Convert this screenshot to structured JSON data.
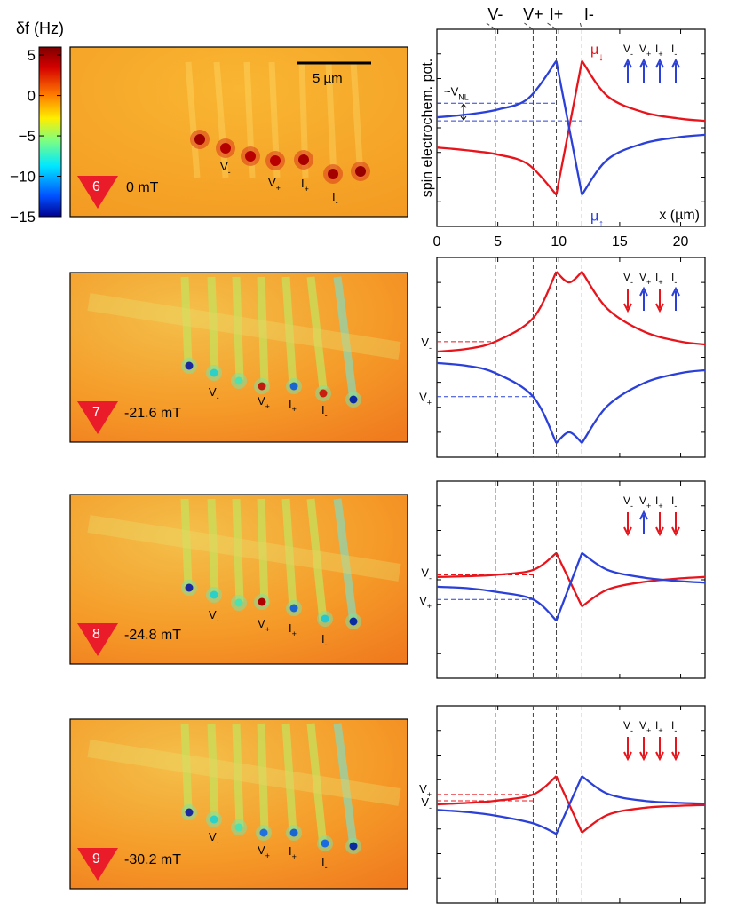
{
  "colorbar": {
    "label": "δf (Hz)",
    "ticks": [
      "5",
      "0",
      "−5",
      "−10",
      "−15"
    ],
    "tick_values": [
      5,
      0,
      -5,
      -10,
      -15
    ],
    "range": [
      -15,
      6
    ],
    "colors": [
      "#00008f",
      "#0050ff",
      "#00e8ff",
      "#7fff7f",
      "#ffee00",
      "#ff7a00",
      "#d40000",
      "#7f0000"
    ]
  },
  "colors": {
    "mu_down": "#e8141c",
    "mu_up": "#2a40d8",
    "map_background": "#f7a624",
    "marker_triangle": "#ea1c2a"
  },
  "scale_bar": "5 µm",
  "electrodes": [
    {
      "name": "V-",
      "base": "V",
      "sub": "-",
      "x": 4.8
    },
    {
      "name": "V+",
      "base": "V",
      "sub": "+",
      "x": 7.9
    },
    {
      "name": "I+",
      "base": "I",
      "sub": "+",
      "x": 9.8
    },
    {
      "name": "I-",
      "base": "I",
      "sub": "-",
      "x": 11.9
    }
  ],
  "top_electrode_labels": [
    "V-",
    "V+",
    "I+",
    "I-"
  ],
  "panels": [
    {
      "id": "6",
      "field": "0 mT",
      "image_labels": [
        {
          "b": "V",
          "s": "-"
        },
        {
          "b": "V",
          "s": "+"
        },
        {
          "b": "I",
          "s": "+"
        },
        {
          "b": "I",
          "s": "-"
        }
      ],
      "arrows": [
        {
          "label": "V-",
          "b": "V",
          "s": "-",
          "dir": "up"
        },
        {
          "label": "V+",
          "b": "V",
          "s": "+",
          "dir": "up"
        },
        {
          "label": "I+",
          "b": "I",
          "s": "+",
          "dir": "up"
        },
        {
          "label": "I-",
          "b": "I",
          "s": "-",
          "dir": "up"
        }
      ],
      "annotation": {
        "b": "~V",
        "s": "NL"
      },
      "level_labels": [],
      "mu_down_label": {
        "b": "μ",
        "s": "↓"
      },
      "mu_up_label": {
        "b": "μ",
        "s": "↑"
      }
    },
    {
      "id": "7",
      "field": "-21.6 mT",
      "image_labels": [
        {
          "b": "V",
          "s": "-"
        },
        {
          "b": "V",
          "s": "+"
        },
        {
          "b": "I",
          "s": "+"
        },
        {
          "b": "I",
          "s": "-"
        }
      ],
      "arrows": [
        {
          "label": "V-",
          "b": "V",
          "s": "-",
          "dir": "down"
        },
        {
          "label": "V+",
          "b": "V",
          "s": "+",
          "dir": "up"
        },
        {
          "label": "I+",
          "b": "I",
          "s": "+",
          "dir": "down"
        },
        {
          "label": "I-",
          "b": "I",
          "s": "-",
          "dir": "up"
        }
      ],
      "level_labels": [
        {
          "b": "V",
          "s": "-"
        },
        {
          "b": "V",
          "s": "+"
        }
      ]
    },
    {
      "id": "8",
      "field": "-24.8 mT",
      "image_labels": [
        {
          "b": "V",
          "s": "-"
        },
        {
          "b": "V",
          "s": "+"
        },
        {
          "b": "I",
          "s": "+"
        },
        {
          "b": "I",
          "s": "-"
        }
      ],
      "arrows": [
        {
          "label": "V-",
          "b": "V",
          "s": "-",
          "dir": "down"
        },
        {
          "label": "V+",
          "b": "V",
          "s": "+",
          "dir": "up"
        },
        {
          "label": "I+",
          "b": "I",
          "s": "+",
          "dir": "down"
        },
        {
          "label": "I-",
          "b": "I",
          "s": "-",
          "dir": "down"
        }
      ],
      "level_labels": [
        {
          "b": "V",
          "s": "-"
        },
        {
          "b": "V",
          "s": "+"
        }
      ]
    },
    {
      "id": "9",
      "field": "-30.2 mT",
      "image_labels": [
        {
          "b": "V",
          "s": "-"
        },
        {
          "b": "V",
          "s": "+"
        },
        {
          "b": "I",
          "s": "+"
        },
        {
          "b": "I",
          "s": "-"
        }
      ],
      "arrows": [
        {
          "label": "V-",
          "b": "V",
          "s": "-",
          "dir": "down"
        },
        {
          "label": "V+",
          "b": "V",
          "s": "+",
          "dir": "down"
        },
        {
          "label": "I+",
          "b": "I",
          "s": "+",
          "dir": "down"
        },
        {
          "label": "I-",
          "b": "I",
          "s": "-",
          "dir": "down"
        }
      ],
      "level_labels": [
        {
          "b": "V",
          "s": "+"
        },
        {
          "b": "V",
          "s": "-"
        }
      ]
    }
  ],
  "chart_data": [
    {
      "type": "line",
      "panel": "6",
      "title": "",
      "xlabel": "x (µm)",
      "ylabel": "spin electrochem. pot.",
      "xlim": [
        0,
        22
      ],
      "ylim": [
        -1.4,
        1.4
      ],
      "xticks": [
        0,
        5,
        10,
        15,
        20
      ],
      "xticklabels": [
        "0",
        "5",
        "10",
        "15",
        "20"
      ],
      "series": [
        {
          "name": "μ↓",
          "color": "#e8141c",
          "x": [
            0,
            2.5,
            5,
            7.5,
            9.8,
            11.9,
            14,
            17,
            20,
            22
          ],
          "y": [
            -0.28,
            -0.32,
            -0.38,
            -0.52,
            -0.95,
            0.95,
            0.45,
            0.22,
            0.13,
            0.1
          ]
        },
        {
          "name": "μ↑",
          "color": "#2a40d8",
          "x": [
            0,
            2.5,
            5,
            7.5,
            9.8,
            11.9,
            14,
            17,
            20,
            22
          ],
          "y": [
            0.15,
            0.19,
            0.26,
            0.42,
            0.95,
            -0.95,
            -0.45,
            -0.22,
            -0.13,
            -0.1
          ]
        }
      ],
      "levels": [
        {
          "label": "~VNL",
          "y_top": 0.35,
          "y_bottom": 0.1,
          "color": "#2a40d8"
        }
      ]
    },
    {
      "type": "line",
      "panel": "7",
      "xlabel": "",
      "ylabel": "",
      "xlim": [
        0,
        22
      ],
      "ylim": [
        -1.4,
        1.4
      ],
      "series": [
        {
          "name": "μ↓",
          "color": "#e8141c",
          "x": [
            0,
            2.5,
            4.8,
            7.9,
            9.8,
            10.85,
            11.9,
            14,
            17,
            20,
            22
          ],
          "y": [
            0.08,
            0.12,
            0.22,
            0.55,
            1.2,
            1.05,
            1.2,
            0.68,
            0.36,
            0.22,
            0.18
          ]
        },
        {
          "name": "μ↑",
          "color": "#2a40d8",
          "x": [
            0,
            2.5,
            4.8,
            7.9,
            9.8,
            10.85,
            11.9,
            14,
            17,
            20,
            22
          ],
          "y": [
            -0.08,
            -0.12,
            -0.22,
            -0.55,
            -1.2,
            -1.05,
            -1.2,
            -0.68,
            -0.36,
            -0.22,
            -0.18
          ]
        }
      ],
      "levels": [
        {
          "label": "V-",
          "y": 0.22,
          "color": "#e8141c"
        },
        {
          "label": "V+",
          "y": -0.55,
          "color": "#2a40d8"
        }
      ]
    },
    {
      "type": "line",
      "panel": "8",
      "xlabel": "",
      "ylabel": "",
      "xlim": [
        0,
        22
      ],
      "ylim": [
        -1.4,
        1.4
      ],
      "series": [
        {
          "name": "μ↓",
          "color": "#e8141c",
          "x": [
            0,
            2.5,
            4.8,
            7.9,
            9.8,
            11.9,
            14,
            17,
            20,
            22
          ],
          "y": [
            0.04,
            0.05,
            0.07,
            0.14,
            0.38,
            -0.38,
            -0.14,
            -0.03,
            0.02,
            0.04
          ]
        },
        {
          "name": "μ↑",
          "color": "#2a40d8",
          "x": [
            0,
            2.5,
            4.8,
            7.9,
            9.8,
            11.9,
            14,
            17,
            20,
            22
          ],
          "y": [
            -0.1,
            -0.12,
            -0.17,
            -0.28,
            -0.58,
            0.38,
            0.14,
            0.03,
            -0.02,
            -0.04
          ]
        }
      ],
      "levels": [
        {
          "label": "V-",
          "y": 0.07,
          "color": "#e8141c"
        },
        {
          "label": "V+",
          "y": -0.28,
          "color": "#2a40d8"
        }
      ]
    },
    {
      "type": "line",
      "panel": "9",
      "xlabel": "",
      "ylabel": "",
      "xlim": [
        0,
        22
      ],
      "ylim": [
        -1.4,
        1.4
      ],
      "series": [
        {
          "name": "μ↓",
          "color": "#e8141c",
          "x": [
            0,
            2.5,
            4.8,
            7.9,
            9.8,
            11.9,
            14,
            17,
            20,
            22
          ],
          "y": [
            0.0,
            0.02,
            0.05,
            0.14,
            0.4,
            -0.4,
            -0.15,
            -0.05,
            -0.02,
            -0.01
          ]
        },
        {
          "name": "μ↑",
          "color": "#2a40d8",
          "x": [
            0,
            2.5,
            4.8,
            7.9,
            9.8,
            11.9,
            14,
            17,
            20,
            22
          ],
          "y": [
            -0.08,
            -0.11,
            -0.16,
            -0.27,
            -0.42,
            0.4,
            0.15,
            0.05,
            0.02,
            0.01
          ]
        }
      ],
      "levels": [
        {
          "label": "V+",
          "y": 0.14,
          "color": "#e8141c"
        },
        {
          "label": "V-",
          "y": 0.05,
          "color": "#e8141c"
        }
      ]
    }
  ]
}
